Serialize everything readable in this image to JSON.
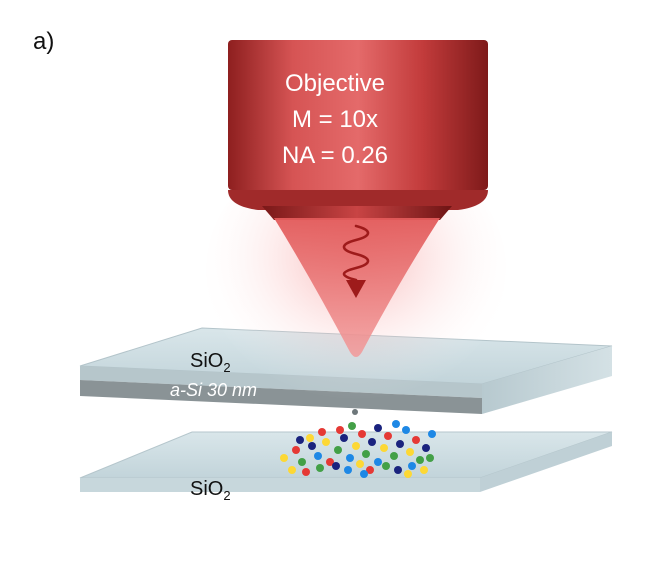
{
  "panel_label": "a)",
  "objective": {
    "title": "Objective",
    "magnification": "M = 10x",
    "aperture": "NA = 0.26"
  },
  "layers": {
    "top_oxide": {
      "base": "SiO",
      "sub": "2"
    },
    "film": "a-Si 30 nm",
    "bottom_oxide": {
      "base": "SiO",
      "sub": "2"
    }
  },
  "colors": {
    "objective": "#c23b3b",
    "beam": "#e26060",
    "wave_arrow": "#9e1b1b",
    "glass": "#c9dbe1",
    "film": "#8a9396",
    "particles": [
      "#e53935",
      "#1e88e5",
      "#43a047",
      "#fdd835",
      "#1a237e"
    ]
  }
}
